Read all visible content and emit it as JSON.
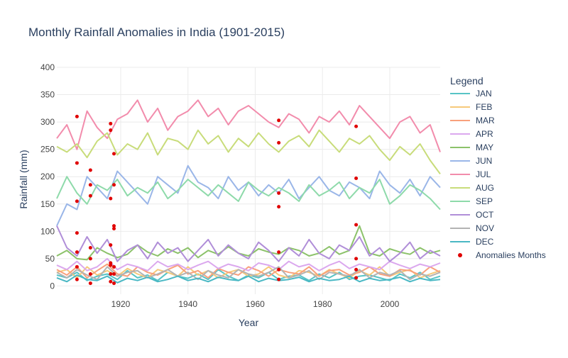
{
  "chart_data": {
    "type": "line",
    "title": "Monthly Rainfall Anomalies in India (1901-2015)",
    "xlabel": "Year",
    "ylabel": "Rainfall (mm)",
    "xlim": [
      1901,
      2015
    ],
    "ylim": [
      -15,
      400
    ],
    "x_ticks": [
      1920,
      1940,
      1960,
      1980,
      2000
    ],
    "y_ticks": [
      0,
      50,
      100,
      150,
      200,
      250,
      300,
      350,
      400
    ],
    "grid": true,
    "legend": {
      "title": "Legend",
      "placement": "right",
      "anomalies_label": "Anomalies Months"
    },
    "x": [
      1901,
      1904,
      1907,
      1910,
      1913,
      1916,
      1919,
      1922,
      1925,
      1928,
      1931,
      1934,
      1937,
      1940,
      1943,
      1946,
      1949,
      1952,
      1955,
      1958,
      1961,
      1964,
      1967,
      1970,
      1973,
      1976,
      1979,
      1982,
      1985,
      1988,
      1991,
      1994,
      1997,
      2000,
      2003,
      2006,
      2009,
      2012,
      2015
    ],
    "series": [
      {
        "name": "JAN",
        "color": "#57c4c6",
        "values": [
          20,
          15,
          25,
          10,
          18,
          22,
          12,
          28,
          15,
          20,
          10,
          25,
          18,
          14,
          22,
          12,
          30,
          18,
          10,
          20,
          15,
          25,
          12,
          18,
          20,
          10,
          22,
          15,
          25,
          12,
          18,
          20,
          15,
          10,
          22,
          15,
          25,
          12,
          18
        ]
      },
      {
        "name": "FEB",
        "color": "#f6c97a",
        "values": [
          25,
          30,
          15,
          35,
          20,
          28,
          18,
          32,
          22,
          15,
          30,
          25,
          18,
          35,
          20,
          28,
          15,
          25,
          30,
          18,
          22,
          35,
          20,
          15,
          28,
          25,
          18,
          30,
          22,
          15,
          28,
          20,
          35,
          18,
          25,
          30,
          15,
          22,
          28
        ]
      },
      {
        "name": "MAR",
        "color": "#f8a07c",
        "values": [
          30,
          20,
          35,
          15,
          28,
          40,
          22,
          18,
          35,
          25,
          20,
          30,
          38,
          22,
          28,
          15,
          32,
          25,
          20,
          35,
          28,
          18,
          30,
          25,
          22,
          35,
          18,
          28,
          30,
          20,
          25,
          35,
          22,
          18,
          30,
          28,
          20,
          35,
          25
        ]
      },
      {
        "name": "APR",
        "color": "#dba8ee",
        "values": [
          38,
          30,
          45,
          28,
          35,
          50,
          30,
          40,
          35,
          28,
          45,
          35,
          40,
          30,
          38,
          45,
          32,
          40,
          35,
          28,
          42,
          38,
          30,
          45,
          35,
          40,
          28,
          38,
          45,
          32,
          40,
          35,
          30,
          45,
          38,
          32,
          40,
          35,
          42
        ]
      },
      {
        "name": "MAY",
        "color": "#8cc26a",
        "values": [
          55,
          65,
          50,
          48,
          70,
          60,
          52,
          58,
          75,
          62,
          55,
          68,
          60,
          70,
          52,
          65,
          58,
          72,
          60,
          55,
          68,
          62,
          58,
          70,
          65,
          55,
          60,
          72,
          58,
          65,
          110,
          60,
          55,
          68,
          62,
          58,
          70,
          60,
          65
        ]
      },
      {
        "name": "JUN",
        "color": "#9ab6e8",
        "values": [
          110,
          150,
          140,
          200,
          180,
          160,
          210,
          190,
          170,
          150,
          200,
          185,
          170,
          220,
          190,
          180,
          160,
          200,
          175,
          190,
          165,
          185,
          170,
          195,
          160,
          180,
          200,
          175,
          165,
          190,
          180,
          160,
          210,
          185,
          170,
          195,
          165,
          200,
          180
        ]
      },
      {
        "name": "JUL",
        "color": "#f28cac",
        "values": [
          270,
          295,
          250,
          320,
          290,
          270,
          305,
          315,
          340,
          300,
          325,
          285,
          310,
          320,
          340,
          310,
          325,
          295,
          320,
          330,
          315,
          300,
          290,
          315,
          305,
          280,
          310,
          300,
          320,
          295,
          330,
          310,
          290,
          270,
          300,
          310,
          280,
          295,
          245
        ]
      },
      {
        "name": "AUG",
        "color": "#c8dc7a",
        "values": [
          255,
          245,
          260,
          235,
          265,
          280,
          240,
          260,
          250,
          280,
          240,
          270,
          265,
          250,
          285,
          260,
          275,
          245,
          270,
          255,
          280,
          260,
          245,
          265,
          275,
          255,
          285,
          265,
          245,
          270,
          260,
          275,
          250,
          230,
          255,
          240,
          260,
          230,
          205
        ]
      },
      {
        "name": "SEP",
        "color": "#8edaaa",
        "values": [
          160,
          200,
          170,
          150,
          185,
          175,
          195,
          165,
          180,
          170,
          190,
          160,
          175,
          195,
          180,
          165,
          185,
          170,
          155,
          190,
          175,
          165,
          180,
          170,
          155,
          185,
          165,
          175,
          190,
          160,
          180,
          170,
          195,
          150,
          165,
          185,
          175,
          160,
          140
        ]
      },
      {
        "name": "OCT",
        "color": "#b08ed8",
        "values": [
          110,
          70,
          55,
          90,
          60,
          85,
          45,
          65,
          75,
          50,
          80,
          60,
          70,
          45,
          65,
          85,
          55,
          75,
          60,
          50,
          80,
          65,
          45,
          70,
          55,
          85,
          60,
          50,
          75,
          65,
          90,
          55,
          70,
          45,
          60,
          80,
          50,
          65,
          55
        ]
      },
      {
        "name": "NOV",
        "color": "#b3b3b3",
        "values": [
          25,
          15,
          30,
          20,
          12,
          35,
          18,
          25,
          28,
          15,
          22,
          30,
          18,
          25,
          12,
          28,
          20,
          15,
          30,
          22,
          18,
          25,
          35,
          15,
          20,
          28,
          12,
          25,
          22,
          18,
          30,
          15,
          25,
          20,
          28,
          12,
          22,
          18,
          25
        ]
      },
      {
        "name": "DEC",
        "color": "#4ab8c4",
        "values": [
          15,
          8,
          20,
          12,
          10,
          18,
          6,
          14,
          10,
          16,
          8,
          12,
          18,
          10,
          14,
          8,
          16,
          12,
          10,
          18,
          8,
          14,
          10,
          12,
          16,
          8,
          14,
          10,
          12,
          18,
          8,
          14,
          10,
          12,
          16,
          8,
          14,
          10,
          12
        ]
      }
    ],
    "anomalies": [
      {
        "x": 1907,
        "y": [
          12,
          35,
          62,
          97,
          155,
          225,
          310
        ]
      },
      {
        "x": 1911,
        "y": [
          5,
          22,
          50,
          70,
          165,
          185,
          212
        ]
      },
      {
        "x": 1917,
        "y": [
          8,
          22,
          38,
          42,
          75,
          160,
          285,
          297
        ]
      },
      {
        "x": 1918,
        "y": [
          5,
          22,
          35,
          105,
          110,
          185,
          242
        ]
      },
      {
        "x": 1967,
        "y": [
          12,
          30,
          62,
          145,
          170,
          262,
          303
        ]
      },
      {
        "x": 1990,
        "y": [
          15,
          30,
          50,
          112,
          197,
          292
        ]
      }
    ]
  }
}
